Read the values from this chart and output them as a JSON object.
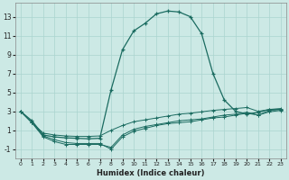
{
  "xlabel": "Humidex (Indice chaleur)",
  "background_color": "#cce9e5",
  "grid_color": "#aad4cf",
  "line_color": "#1a6b60",
  "xlim": [
    -0.5,
    23.5
  ],
  "ylim": [
    -2.0,
    14.5
  ],
  "xticks": [
    0,
    1,
    2,
    3,
    4,
    5,
    6,
    7,
    8,
    9,
    10,
    11,
    12,
    13,
    14,
    15,
    16,
    17,
    18,
    19,
    20,
    21,
    22,
    23
  ],
  "yticks": [
    -1,
    1,
    3,
    5,
    7,
    9,
    11,
    13
  ],
  "line1_x": [
    0,
    1,
    2,
    3,
    4,
    5,
    6,
    7,
    8,
    9,
    10,
    11,
    12,
    13,
    14,
    15,
    16,
    17,
    18,
    19,
    20,
    21,
    22,
    23
  ],
  "line1_y": [
    3.0,
    2.0,
    0.5,
    0.3,
    0.2,
    0.15,
    0.1,
    0.15,
    5.3,
    9.5,
    11.5,
    12.3,
    13.3,
    13.6,
    13.5,
    13.0,
    11.2,
    7.0,
    4.2,
    3.0,
    2.7,
    2.9,
    3.2,
    3.2
  ],
  "line2_x": [
    0,
    1,
    2,
    3,
    4,
    5,
    6,
    7,
    8,
    9,
    10,
    11,
    12,
    13,
    14,
    15,
    16,
    17,
    18,
    19,
    20,
    21,
    22,
    23
  ],
  "line2_y": [
    3.0,
    1.8,
    0.7,
    0.5,
    0.4,
    0.35,
    0.35,
    0.4,
    1.0,
    1.5,
    1.9,
    2.1,
    2.3,
    2.5,
    2.7,
    2.8,
    2.95,
    3.1,
    3.2,
    3.3,
    3.4,
    3.0,
    3.2,
    3.3
  ],
  "line3_x": [
    0,
    1,
    2,
    3,
    4,
    5,
    6,
    7,
    8,
    9,
    10,
    11,
    12,
    13,
    14,
    15,
    16,
    17,
    18,
    19,
    20,
    21,
    22,
    23
  ],
  "line3_y": [
    3.0,
    1.8,
    0.3,
    -0.2,
    -0.5,
    -0.5,
    -0.5,
    -0.5,
    -0.8,
    0.5,
    1.1,
    1.4,
    1.6,
    1.8,
    2.0,
    2.1,
    2.2,
    2.4,
    2.6,
    2.7,
    2.9,
    2.6,
    3.1,
    3.2
  ],
  "line4_x": [
    0,
    1,
    2,
    3,
    4,
    5,
    6,
    7,
    8,
    9,
    10,
    11,
    12,
    13,
    14,
    15,
    16,
    17,
    18,
    19,
    20,
    21,
    22,
    23
  ],
  "line4_y": [
    3.0,
    1.8,
    0.4,
    0.0,
    -0.3,
    -0.4,
    -0.4,
    -0.4,
    -1.0,
    0.3,
    0.9,
    1.2,
    1.5,
    1.7,
    1.8,
    1.9,
    2.1,
    2.3,
    2.4,
    2.6,
    2.8,
    2.6,
    2.95,
    3.1
  ]
}
